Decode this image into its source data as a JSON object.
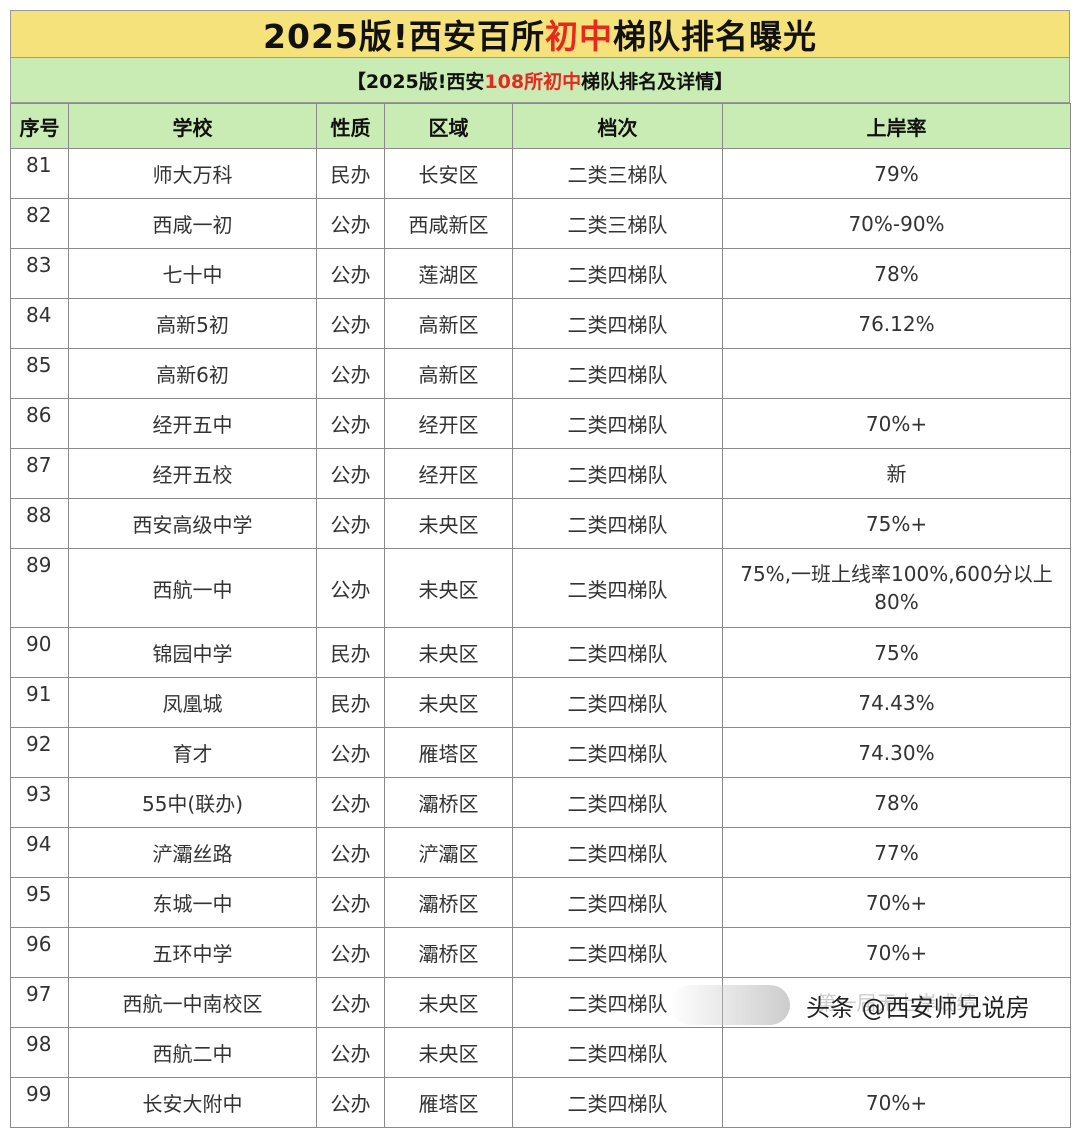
{
  "title": {
    "part1": "2025版!西安百所",
    "highlight": "初中",
    "part2": "梯队排名曝光"
  },
  "subtitle": {
    "part1": "【2025版!西安",
    "highlight": "108所初中",
    "part2": "梯队排名及详情】"
  },
  "columns": [
    "序号",
    "学校",
    "性质",
    "区域",
    "档次",
    "上岸率"
  ],
  "rows": [
    [
      "81",
      "师大万科",
      "民办",
      "长安区",
      "二类三梯队",
      "79%"
    ],
    [
      "82",
      "西咸一初",
      "公办",
      "西咸新区",
      "二类三梯队",
      "70%-90%"
    ],
    [
      "83",
      "七十中",
      "公办",
      "莲湖区",
      "二类四梯队",
      "78%"
    ],
    [
      "84",
      "高新5初",
      "公办",
      "高新区",
      "二类四梯队",
      "76.12%"
    ],
    [
      "85",
      "高新6初",
      "公办",
      "高新区",
      "二类四梯队",
      ""
    ],
    [
      "86",
      "经开五中",
      "公办",
      "经开区",
      "二类四梯队",
      "70%+"
    ],
    [
      "87",
      "经开五校",
      "公办",
      "经开区",
      "二类四梯队",
      "新"
    ],
    [
      "88",
      "西安高级中学",
      "公办",
      "未央区",
      "二类四梯队",
      "75%+"
    ],
    [
      "89",
      "西航一中",
      "公办",
      "未央区",
      "二类四梯队",
      "75%,一班上线率100%,600分以上80%"
    ],
    [
      "90",
      "锦园中学",
      "民办",
      "未央区",
      "二类四梯队",
      "75%"
    ],
    [
      "91",
      "凤凰城",
      "民办",
      "未央区",
      "二类四梯队",
      "74.43%"
    ],
    [
      "92",
      "育才",
      "公办",
      "雁塔区",
      "二类四梯队",
      "74.30%"
    ],
    [
      "93",
      "55中(联办)",
      "公办",
      "灞桥区",
      "二类四梯队",
      "78%"
    ],
    [
      "94",
      "浐灞丝路",
      "公办",
      "浐灞区",
      "二类四梯队",
      "77%"
    ],
    [
      "95",
      "东城一中",
      "公办",
      "灞桥区",
      "二类四梯队",
      "70%+"
    ],
    [
      "96",
      "五环中学",
      "公办",
      "灞桥区",
      "二类四梯队",
      "70%+"
    ],
    [
      "97",
      "西航一中南校区",
      "公办",
      "未央区",
      "二类四梯队",
      "第一届无上岸成绩"
    ],
    [
      "98",
      "西航二中",
      "公办",
      "未央区",
      "二类四梯队",
      ""
    ],
    [
      "99",
      "长安大附中",
      "公办",
      "雁塔区",
      "二类四梯队",
      "70%+"
    ]
  ],
  "watermark": {
    "text": "头条 @西安师兄说房"
  }
}
